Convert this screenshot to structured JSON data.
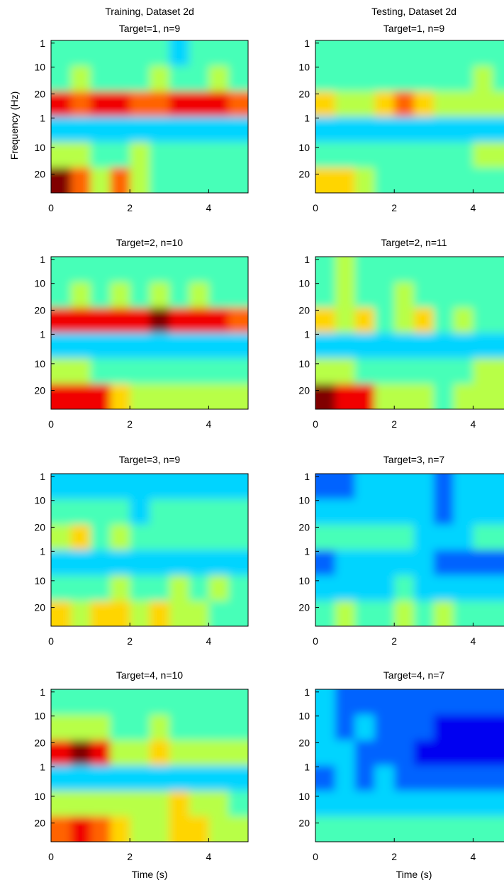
{
  "chart_data": [
    {
      "type": "heatmap",
      "title": [
        "Training, Dataset 2d",
        "Target=1, n=9"
      ],
      "ylabel": "Frequency (Hz)",
      "colormap": "jet",
      "zlim": [
        0,
        9
      ],
      "xlim": [
        0,
        5
      ],
      "xticks": [
        0,
        2,
        4
      ],
      "ylim": [
        0,
        57
      ],
      "yticks": [
        1,
        10,
        20,
        {
          "value": 29,
          "label": "1"
        },
        {
          "value": 40,
          "label": "10"
        },
        {
          "value": 50,
          "label": "20"
        }
      ],
      "z": [
        [
          4,
          4,
          4,
          4,
          4,
          4,
          3,
          4,
          4,
          4
        ],
        [
          4,
          5,
          4,
          4,
          4,
          5,
          4,
          4,
          5,
          4
        ],
        [
          8,
          7,
          8,
          8,
          7,
          7,
          8,
          8,
          8,
          7
        ],
        [
          3,
          3,
          3,
          3,
          3,
          3,
          3,
          3,
          3,
          3
        ],
        [
          5,
          5,
          4,
          4,
          5,
          4,
          4,
          4,
          4,
          4
        ],
        [
          9,
          7,
          5,
          7,
          5,
          4,
          4,
          4,
          4,
          4
        ]
      ]
    },
    {
      "type": "heatmap",
      "title": [
        "Testing, Dataset 2d",
        "Target=1, n=9"
      ],
      "colormap": "jet",
      "zlim": [
        0,
        9
      ],
      "xlim": [
        0,
        5
      ],
      "xticks": [
        0,
        2,
        4
      ],
      "ylim": [
        0,
        57
      ],
      "yticks": [
        1,
        10,
        20,
        {
          "value": 29,
          "label": "1"
        },
        {
          "value": 40,
          "label": "10"
        },
        {
          "value": 50,
          "label": "20"
        }
      ],
      "z": [
        [
          4,
          4,
          4,
          4,
          4,
          4,
          4,
          4,
          4,
          4
        ],
        [
          4,
          4,
          4,
          4,
          4,
          4,
          4,
          4,
          5,
          4
        ],
        [
          6,
          5,
          5,
          6,
          7,
          6,
          5,
          5,
          5,
          5
        ],
        [
          3,
          3,
          3,
          3,
          3,
          3,
          3,
          3,
          3,
          3
        ],
        [
          4,
          4,
          4,
          4,
          4,
          4,
          4,
          4,
          5,
          5
        ],
        [
          6,
          6,
          5,
          4,
          4,
          4,
          4,
          4,
          4,
          4
        ]
      ]
    },
    {
      "type": "heatmap",
      "title": "Target=2, n=10",
      "colormap": "jet",
      "zlim": [
        0,
        9
      ],
      "xlim": [
        0,
        5
      ],
      "xticks": [
        0,
        2,
        4
      ],
      "ylim": [
        0,
        57
      ],
      "yticks": [
        1,
        10,
        20,
        {
          "value": 29,
          "label": "1"
        },
        {
          "value": 40,
          "label": "10"
        },
        {
          "value": 50,
          "label": "20"
        }
      ],
      "z": [
        [
          4,
          4,
          4,
          4,
          4,
          4,
          4,
          4,
          4,
          4
        ],
        [
          4,
          5,
          4,
          5,
          4,
          5,
          4,
          5,
          4,
          4
        ],
        [
          8,
          8,
          8,
          8,
          8,
          9,
          8,
          8,
          8,
          7
        ],
        [
          3,
          3,
          3,
          3,
          3,
          3,
          3,
          3,
          3,
          3
        ],
        [
          5,
          5,
          4,
          4,
          4,
          4,
          4,
          4,
          4,
          4
        ],
        [
          8,
          8,
          8,
          6,
          5,
          5,
          5,
          5,
          5,
          5
        ]
      ]
    },
    {
      "type": "heatmap",
      "title": "Target=2, n=11",
      "colormap": "jet",
      "zlim": [
        0,
        9
      ],
      "xlim": [
        0,
        5
      ],
      "xticks": [
        0,
        2,
        4
      ],
      "ylim": [
        0,
        57
      ],
      "yticks": [
        1,
        10,
        20,
        {
          "value": 29,
          "label": "1"
        },
        {
          "value": 40,
          "label": "10"
        },
        {
          "value": 50,
          "label": "20"
        }
      ],
      "z": [
        [
          4,
          5,
          4,
          4,
          4,
          4,
          4,
          4,
          4,
          4
        ],
        [
          4,
          5,
          4,
          4,
          5,
          4,
          4,
          4,
          4,
          4
        ],
        [
          6,
          5,
          6,
          4,
          5,
          6,
          4,
          5,
          4,
          4
        ],
        [
          3,
          3,
          3,
          3,
          3,
          3,
          3,
          3,
          3,
          3
        ],
        [
          5,
          5,
          4,
          4,
          4,
          4,
          4,
          4,
          5,
          5
        ],
        [
          9,
          8,
          8,
          5,
          5,
          5,
          4,
          5,
          5,
          5
        ]
      ]
    },
    {
      "type": "heatmap",
      "title": "Target=3, n=9",
      "colormap": "jet",
      "zlim": [
        0,
        9
      ],
      "xlim": [
        0,
        5
      ],
      "xticks": [
        0,
        2,
        4
      ],
      "ylim": [
        0,
        57
      ],
      "yticks": [
        1,
        10,
        20,
        {
          "value": 29,
          "label": "1"
        },
        {
          "value": 40,
          "label": "10"
        },
        {
          "value": 50,
          "label": "20"
        }
      ],
      "z": [
        [
          3,
          3,
          3,
          3,
          3,
          3,
          3,
          3,
          3,
          3
        ],
        [
          4,
          4,
          4,
          4,
          3,
          4,
          4,
          4,
          4,
          4
        ],
        [
          5,
          6,
          4,
          5,
          4,
          4,
          4,
          4,
          4,
          4
        ],
        [
          3,
          3,
          3,
          3,
          3,
          3,
          3,
          3,
          3,
          3
        ],
        [
          4,
          4,
          4,
          5,
          4,
          4,
          5,
          4,
          5,
          4
        ],
        [
          6,
          5,
          6,
          6,
          5,
          6,
          5,
          5,
          4,
          4
        ]
      ]
    },
    {
      "type": "heatmap",
      "title": "Target=3, n=7",
      "colormap": "jet",
      "zlim": [
        0,
        9
      ],
      "xlim": [
        0,
        5
      ],
      "xticks": [
        0,
        2,
        4
      ],
      "ylim": [
        0,
        57
      ],
      "yticks": [
        1,
        10,
        20,
        {
          "value": 29,
          "label": "1"
        },
        {
          "value": 40,
          "label": "10"
        },
        {
          "value": 50,
          "label": "20"
        }
      ],
      "z": [
        [
          2,
          2,
          3,
          3,
          3,
          3,
          2,
          3,
          3,
          3
        ],
        [
          3,
          3,
          3,
          3,
          3,
          3,
          2,
          3,
          3,
          3
        ],
        [
          4,
          4,
          4,
          4,
          4,
          3,
          3,
          3,
          4,
          4
        ],
        [
          2,
          3,
          3,
          3,
          3,
          3,
          2,
          2,
          2,
          2
        ],
        [
          3,
          3,
          3,
          3,
          4,
          3,
          3,
          3,
          3,
          3
        ],
        [
          4,
          5,
          4,
          4,
          5,
          4,
          5,
          4,
          4,
          4
        ]
      ]
    },
    {
      "type": "heatmap",
      "title": "Target=4, n=10",
      "xlabel": "Time (s)",
      "colormap": "jet",
      "zlim": [
        0,
        9
      ],
      "xlim": [
        0,
        5
      ],
      "xticks": [
        0,
        2,
        4
      ],
      "ylim": [
        0,
        57
      ],
      "yticks": [
        1,
        10,
        20,
        {
          "value": 29,
          "label": "1"
        },
        {
          "value": 40,
          "label": "10"
        },
        {
          "value": 50,
          "label": "20"
        }
      ],
      "z": [
        [
          4,
          4,
          4,
          4,
          4,
          4,
          4,
          4,
          4,
          4
        ],
        [
          5,
          5,
          5,
          4,
          4,
          5,
          4,
          4,
          4,
          4
        ],
        [
          8,
          9,
          8,
          5,
          5,
          6,
          5,
          5,
          5,
          5
        ],
        [
          3,
          3,
          3,
          3,
          3,
          3,
          3,
          3,
          3,
          3
        ],
        [
          5,
          5,
          5,
          5,
          5,
          5,
          6,
          5,
          5,
          4
        ],
        [
          7,
          8,
          7,
          6,
          5,
          5,
          6,
          6,
          5,
          5
        ]
      ]
    },
    {
      "type": "heatmap",
      "title": "Target=4, n=7",
      "xlabel": "Time (s)",
      "colormap": "jet",
      "zlim": [
        0,
        9
      ],
      "xlim": [
        0,
        5
      ],
      "xticks": [
        0,
        2,
        4
      ],
      "ylim": [
        0,
        57
      ],
      "yticks": [
        1,
        10,
        20,
        {
          "value": 29,
          "label": "1"
        },
        {
          "value": 40,
          "label": "10"
        },
        {
          "value": 50,
          "label": "20"
        }
      ],
      "z": [
        [
          3,
          2,
          2,
          2,
          2,
          2,
          2,
          2,
          2,
          2
        ],
        [
          3,
          2,
          3,
          2,
          2,
          2,
          1,
          1,
          1,
          1
        ],
        [
          3,
          3,
          2,
          2,
          2,
          1,
          1,
          1,
          1,
          1
        ],
        [
          2,
          3,
          2,
          3,
          2,
          2,
          2,
          2,
          2,
          2
        ],
        [
          3,
          3,
          3,
          3,
          3,
          3,
          3,
          3,
          3,
          3
        ],
        [
          4,
          4,
          4,
          4,
          4,
          4,
          4,
          4,
          4,
          4
        ]
      ]
    }
  ]
}
